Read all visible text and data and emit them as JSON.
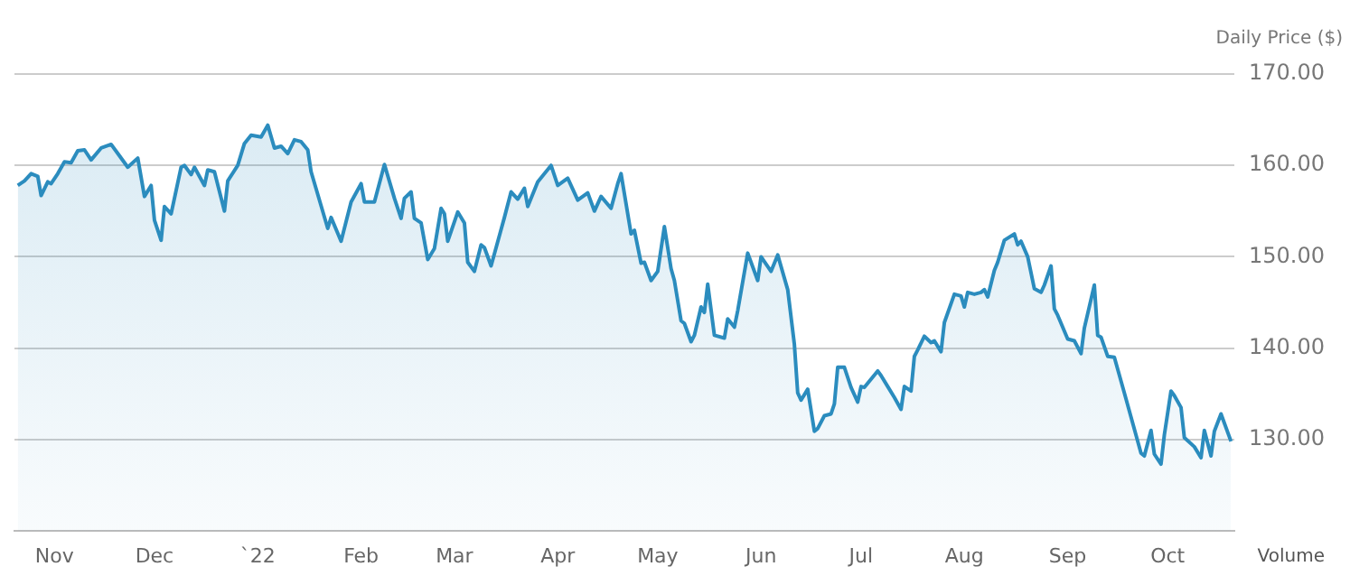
{
  "chart_data": {
    "type": "area",
    "ylabel": "Daily Price ($)",
    "annotations": [
      "Volume"
    ],
    "x": [
      "2021-10-21",
      "2021-10-23",
      "2021-10-25",
      "2021-10-27",
      "2021-10-28",
      "2021-10-30",
      "2021-10-31",
      "2021-11-02",
      "2021-11-04",
      "2021-11-06",
      "2021-11-08",
      "2021-11-10",
      "2021-11-12",
      "2021-11-15",
      "2021-11-18",
      "2021-11-20",
      "2021-11-23",
      "2021-11-26",
      "2021-11-28",
      "2021-11-30",
      "2021-12-01",
      "2021-12-03",
      "2021-12-04",
      "2021-12-06",
      "2021-12-09",
      "2021-12-10",
      "2021-12-12",
      "2021-12-13",
      "2021-12-16",
      "2021-12-17",
      "2021-12-19",
      "2021-12-22",
      "2021-12-23",
      "2021-12-26",
      "2021-12-28",
      "2021-12-30",
      "2022-01-02",
      "2022-01-04",
      "2022-01-06",
      "2022-01-08",
      "2022-01-10",
      "2022-01-12",
      "2022-01-14",
      "2022-01-16",
      "2022-01-17",
      "2022-01-22",
      "2022-01-23",
      "2022-01-26",
      "2022-01-29",
      "2022-02-01",
      "2022-02-02",
      "2022-02-05",
      "2022-02-08",
      "2022-02-11",
      "2022-02-13",
      "2022-02-14",
      "2022-02-16",
      "2022-02-17",
      "2022-02-19",
      "2022-02-21",
      "2022-02-23",
      "2022-02-25",
      "2022-02-26",
      "2022-02-27",
      "2022-03-02",
      "2022-03-04",
      "2022-03-05",
      "2022-03-07",
      "2022-03-09",
      "2022-03-10",
      "2022-03-12",
      "2022-03-16",
      "2022-03-18",
      "2022-03-20",
      "2022-03-22",
      "2022-03-23",
      "2022-03-26",
      "2022-03-30",
      "2022-04-01",
      "2022-04-04",
      "2022-04-07",
      "2022-04-10",
      "2022-04-12",
      "2022-04-14",
      "2022-04-17",
      "2022-04-19",
      "2022-04-20",
      "2022-04-23",
      "2022-04-24",
      "2022-04-26",
      "2022-04-27",
      "2022-04-29",
      "2022-05-01",
      "2022-05-03",
      "2022-05-05",
      "2022-05-06",
      "2022-05-08",
      "2022-05-09",
      "2022-05-11",
      "2022-05-12",
      "2022-05-14",
      "2022-05-15",
      "2022-05-16",
      "2022-05-18",
      "2022-05-21",
      "2022-05-22",
      "2022-05-24",
      "2022-05-25",
      "2022-05-28",
      "2022-05-31",
      "2022-06-01",
      "2022-06-04",
      "2022-06-06",
      "2022-06-09",
      "2022-06-11",
      "2022-06-12",
      "2022-06-13",
      "2022-06-15",
      "2022-06-17",
      "2022-06-18",
      "2022-06-20",
      "2022-06-22",
      "2022-06-23",
      "2022-06-24",
      "2022-06-26",
      "2022-06-28",
      "2022-06-30",
      "2022-07-01",
      "2022-07-02",
      "2022-07-06",
      "2022-07-07",
      "2022-07-09",
      "2022-07-11",
      "2022-07-13",
      "2022-07-14",
      "2022-07-16",
      "2022-07-17",
      "2022-07-18",
      "2022-07-20",
      "2022-07-22",
      "2022-07-23",
      "2022-07-25",
      "2022-07-26",
      "2022-07-29",
      "2022-07-31",
      "2022-08-01",
      "2022-08-02",
      "2022-08-04",
      "2022-08-06",
      "2022-08-07",
      "2022-08-08",
      "2022-08-10",
      "2022-08-11",
      "2022-08-13",
      "2022-08-16",
      "2022-08-17",
      "2022-08-18",
      "2022-08-20",
      "2022-08-22",
      "2022-08-24",
      "2022-08-25",
      "2022-08-27",
      "2022-08-28",
      "2022-08-29",
      "2022-09-01",
      "2022-09-03",
      "2022-09-05",
      "2022-09-06",
      "2022-09-09",
      "2022-09-10",
      "2022-09-11",
      "2022-09-13",
      "2022-09-15",
      "2022-09-18",
      "2022-09-23",
      "2022-09-24",
      "2022-09-26",
      "2022-09-27",
      "2022-09-29",
      "2022-09-30",
      "2022-10-02",
      "2022-10-03",
      "2022-10-05",
      "2022-10-06",
      "2022-10-09",
      "2022-10-11",
      "2022-10-12",
      "2022-10-14",
      "2022-10-15",
      "2022-10-17",
      "2022-10-20"
    ],
    "series": [
      {
        "color": "#2b8cbe",
        "values": [
          157.8,
          158.3,
          159.1,
          158.8,
          156.7,
          158.2,
          158.0,
          159.1,
          160.4,
          160.3,
          161.6,
          161.7,
          160.6,
          161.9,
          162.3,
          161.3,
          159.8,
          160.8,
          156.6,
          157.8,
          154.0,
          151.8,
          155.5,
          154.7,
          159.8,
          160.0,
          159.0,
          159.8,
          157.8,
          159.5,
          159.3,
          155.0,
          158.3,
          160.0,
          162.4,
          163.3,
          163.1,
          164.4,
          161.9,
          162.1,
          161.3,
          162.8,
          162.6,
          161.7,
          159.3,
          153.1,
          154.3,
          151.7,
          156.0,
          158.0,
          156.0,
          156.0,
          160.1,
          156.4,
          154.2,
          156.4,
          157.1,
          154.2,
          153.7,
          149.7,
          150.9,
          155.3,
          154.7,
          151.7,
          154.9,
          153.7,
          149.4,
          148.4,
          151.3,
          151.0,
          149.0,
          154.3,
          157.1,
          156.3,
          157.5,
          155.5,
          158.2,
          160.0,
          157.8,
          158.6,
          156.2,
          157.0,
          155.0,
          156.6,
          155.3,
          158.0,
          159.1,
          152.5,
          152.9,
          149.3,
          149.4,
          147.4,
          148.4,
          153.3,
          148.7,
          147.4,
          143.0,
          142.7,
          140.7,
          141.4,
          144.5,
          143.9,
          147.0,
          141.4,
          141.1,
          143.2,
          142.3,
          144.1,
          150.4,
          147.4,
          150.0,
          148.4,
          150.2,
          146.4,
          140.4,
          135.1,
          134.3,
          135.5,
          130.9,
          131.2,
          132.6,
          132.8,
          133.9,
          137.9,
          137.9,
          135.7,
          134.1,
          135.8,
          135.7,
          137.5,
          137.0,
          135.8,
          134.6,
          133.3,
          135.8,
          135.3,
          139.1,
          139.8,
          141.3,
          140.6,
          140.8,
          139.6,
          142.8,
          145.9,
          145.7,
          144.5,
          146.1,
          145.9,
          146.1,
          146.4,
          145.6,
          148.5,
          149.4,
          151.8,
          152.5,
          151.3,
          151.7,
          150.0,
          146.5,
          146.1,
          146.9,
          149.0,
          144.3,
          143.6,
          141.0,
          140.8,
          139.4,
          142.2,
          146.9,
          141.4,
          141.2,
          139.1,
          139.0,
          135.1,
          128.5,
          128.2,
          131.0,
          128.4,
          127.3,
          130.5,
          135.3,
          134.8,
          133.5,
          130.2,
          129.2,
          128.0,
          131.0,
          128.2,
          130.9,
          132.8,
          129.8
        ]
      }
    ],
    "xlim": [
      "2021-10-20",
      "2022-10-21"
    ],
    "xticks": [
      {
        "value": "2021-11-01",
        "label": "Nov"
      },
      {
        "value": "2021-12-01",
        "label": "Dec"
      },
      {
        "value": "2022-01-01",
        "label": "`22"
      },
      {
        "value": "2022-02-01",
        "label": "Feb"
      },
      {
        "value": "2022-03-01",
        "label": "Mar"
      },
      {
        "value": "2022-04-01",
        "label": "Apr"
      },
      {
        "value": "2022-05-01",
        "label": "May"
      },
      {
        "value": "2022-06-01",
        "label": "Jun"
      },
      {
        "value": "2022-07-01",
        "label": "Jul"
      },
      {
        "value": "2022-08-01",
        "label": "Aug"
      },
      {
        "value": "2022-09-01",
        "label": "Sep"
      },
      {
        "value": "2022-10-01",
        "label": "Oct"
      }
    ],
    "ylim": [
      120,
      170
    ],
    "yticks": [
      {
        "value": 130,
        "label": "130.00"
      },
      {
        "value": 140,
        "label": "140.00"
      },
      {
        "value": 150,
        "label": "150.00"
      },
      {
        "value": 160,
        "label": "160.00"
      },
      {
        "value": 170,
        "label": "170.00"
      }
    ],
    "grid": "y",
    "legend": false,
    "marker": "none",
    "line_style": "solid"
  }
}
